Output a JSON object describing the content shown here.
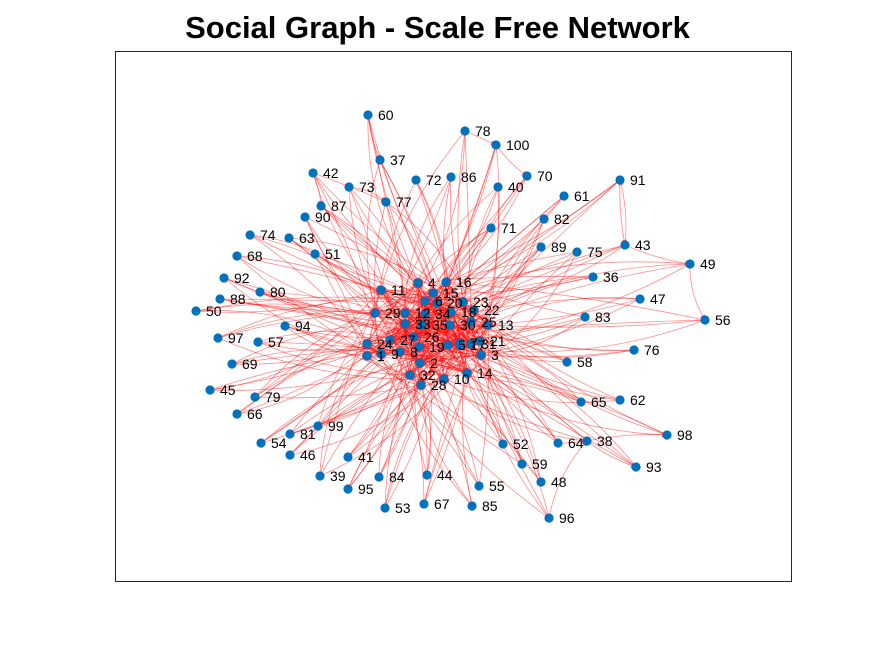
{
  "title": "Social Graph - Scale Free Network",
  "colors": {
    "node": "#0072BD",
    "edge": "#FF0000",
    "axes_border": "#262626",
    "background": "#FFFFFF"
  },
  "graph": {
    "directed": true,
    "nodes": [
      "1",
      "2",
      "3",
      "4",
      "5",
      "6",
      "7",
      "8",
      "9",
      "10",
      "11",
      "12",
      "13",
      "14",
      "15",
      "16",
      "17",
      "18",
      "19",
      "20",
      "21",
      "22",
      "23",
      "24",
      "25",
      "26",
      "27",
      "28",
      "29",
      "30",
      "31",
      "32",
      "33",
      "34",
      "35",
      "36",
      "37",
      "38",
      "39",
      "40",
      "41",
      "42",
      "43",
      "44",
      "45",
      "46",
      "47",
      "48",
      "49",
      "50",
      "51",
      "52",
      "53",
      "54",
      "55",
      "56",
      "57",
      "58",
      "59",
      "60",
      "61",
      "62",
      "63",
      "64",
      "65",
      "66",
      "67",
      "68",
      "69",
      "70",
      "71",
      "72",
      "73",
      "74",
      "75",
      "76",
      "77",
      "78",
      "79",
      "80",
      "81",
      "82",
      "83",
      "84",
      "85",
      "86",
      "87",
      "88",
      "89",
      "90",
      "91",
      "92",
      "93",
      "94",
      "95",
      "96",
      "97",
      "98",
      "99",
      "100"
    ]
  }
}
